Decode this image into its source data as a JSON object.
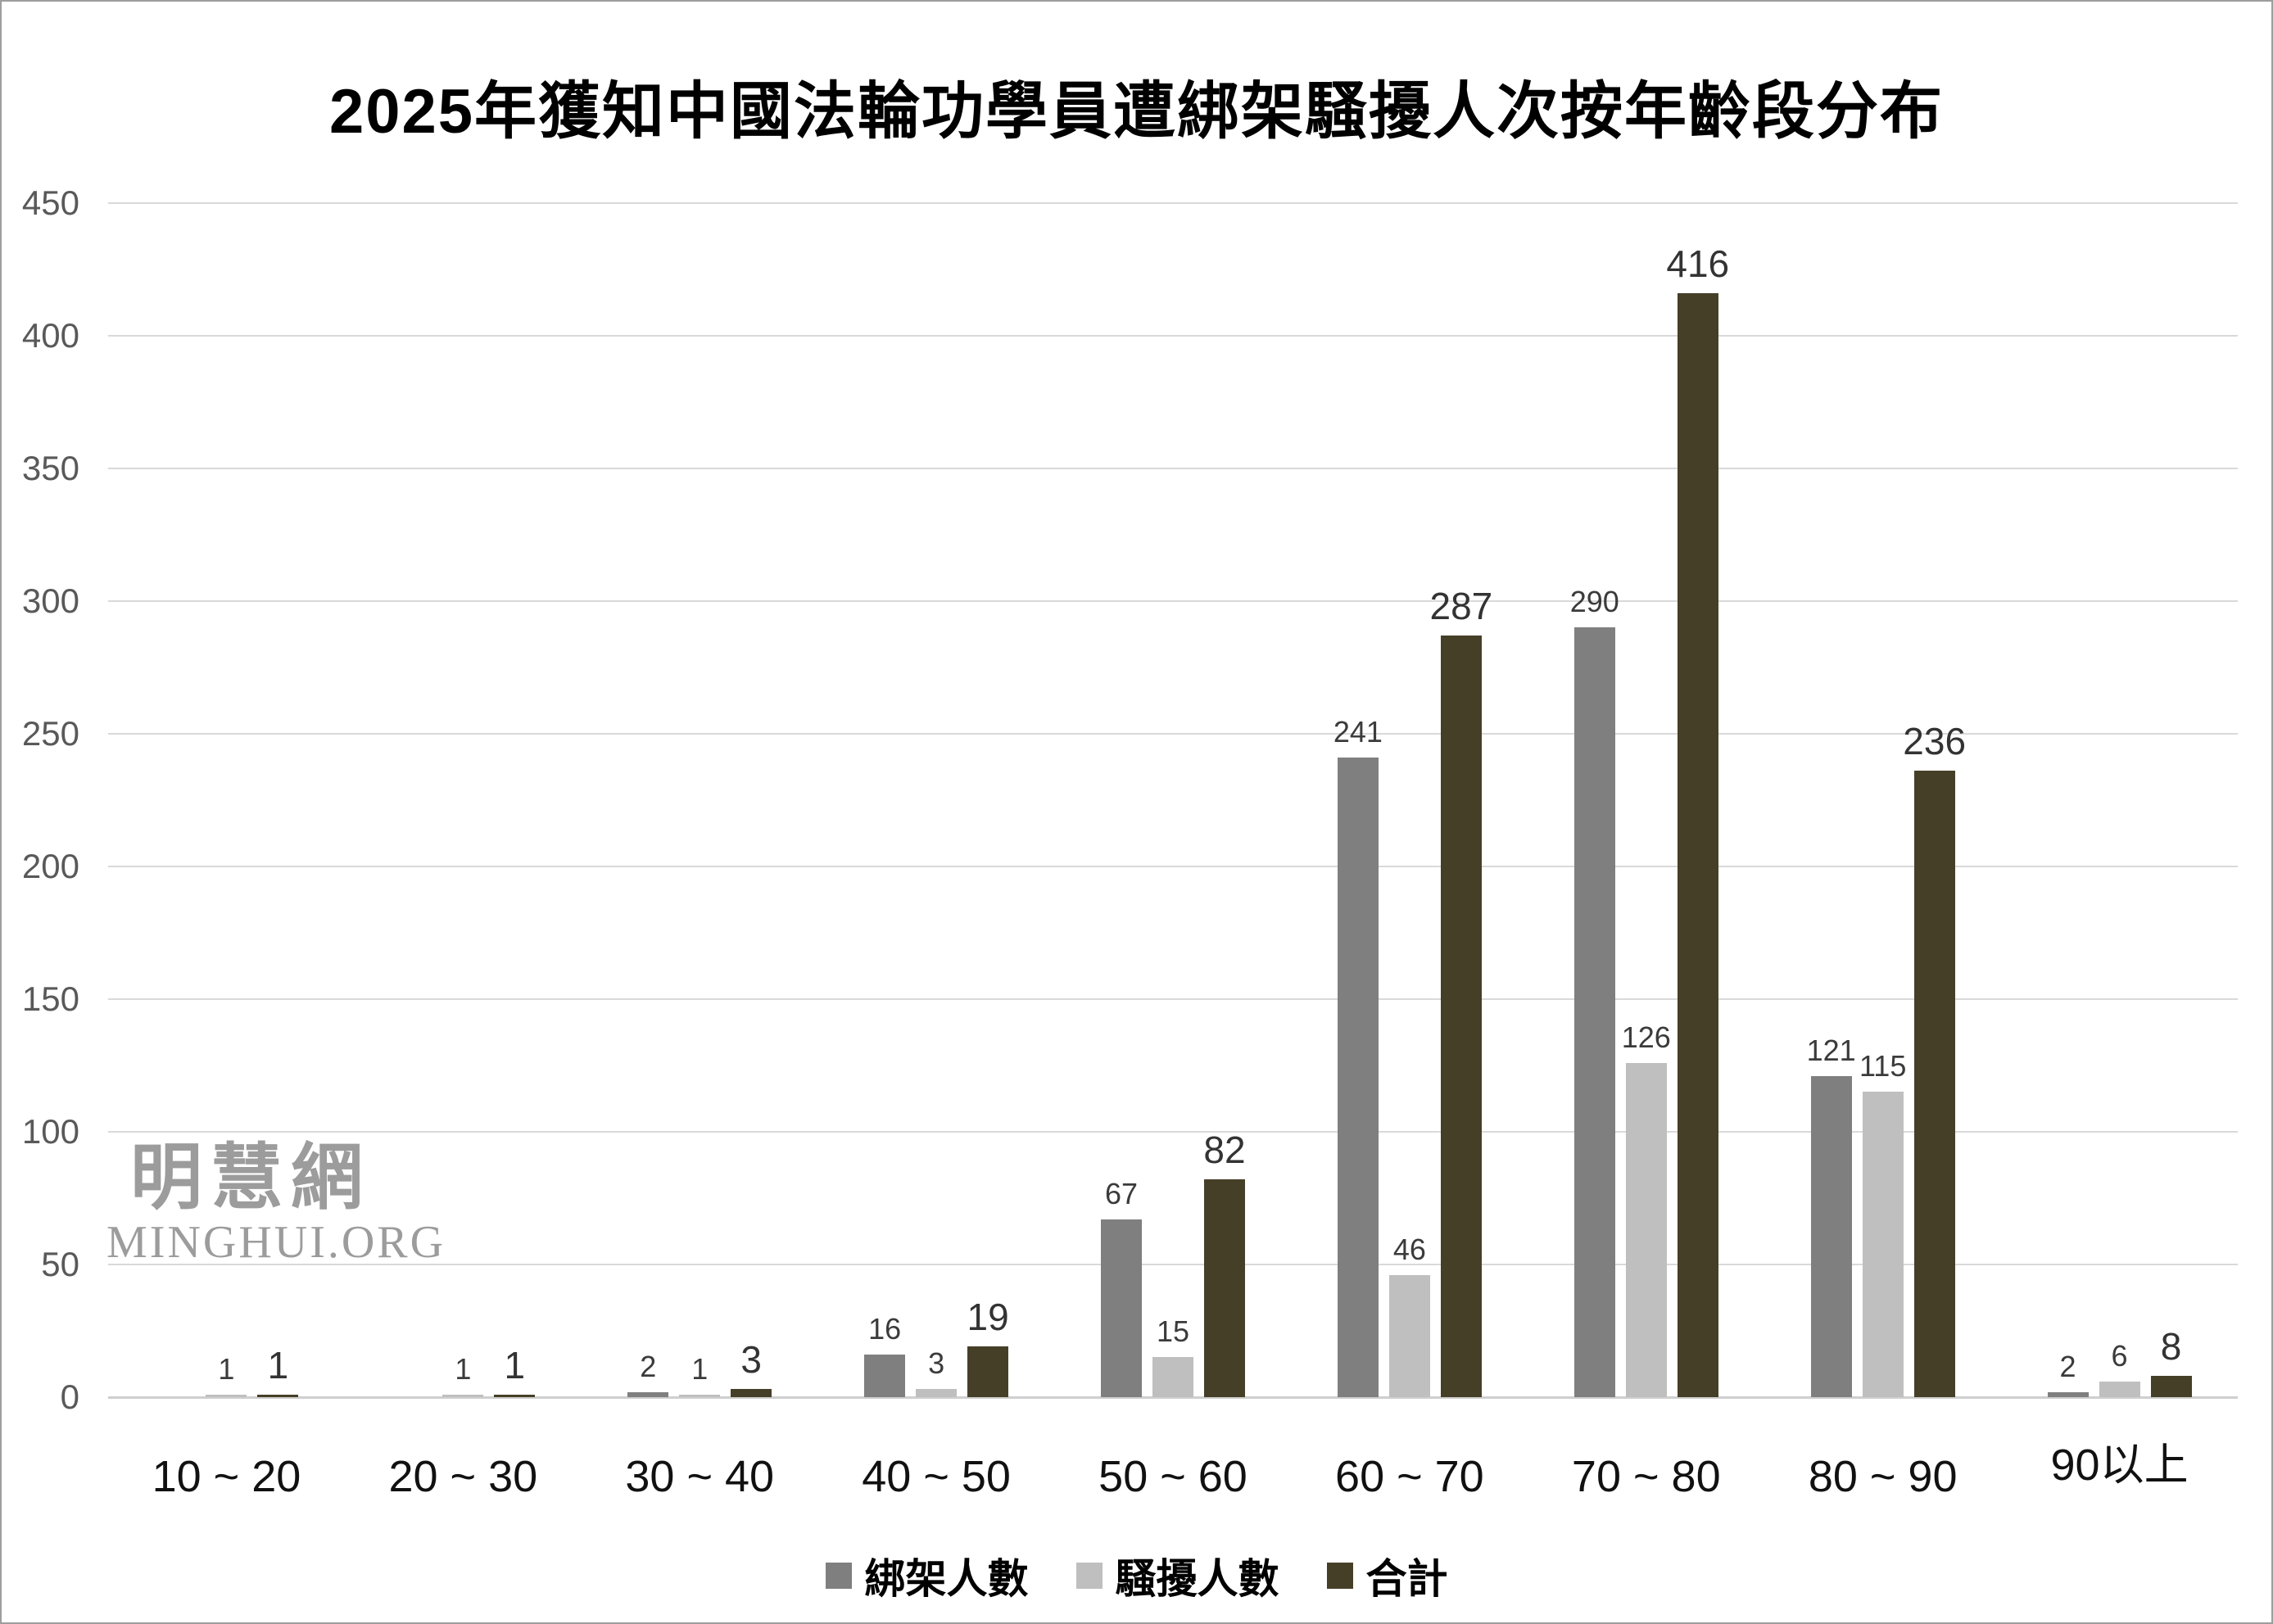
{
  "title": "2025年獲知中國法輪功學員遭綁架騷擾人次按年齡段分布",
  "watermark": {
    "cjk": "明慧網",
    "latin": "MINGHUI.ORG"
  },
  "chart_data": {
    "type": "bar",
    "title": "2025年獲知中國法輪功學員遭綁架騷擾人次按年齡段分布",
    "categories": [
      "10 ~ 20",
      "20 ~ 30",
      "30 ~ 40",
      "40 ~ 50",
      "50 ~ 60",
      "60 ~ 70",
      "70 ~ 80",
      "80 ~ 90",
      "90以上"
    ],
    "series": [
      {
        "name": "綁架人數",
        "color": "#7f7f7f",
        "is_total": false,
        "values": [
          0,
          0,
          2,
          16,
          67,
          241,
          290,
          121,
          2
        ]
      },
      {
        "name": "騷擾人數",
        "color": "#bfbfbf",
        "is_total": false,
        "values": [
          1,
          1,
          1,
          3,
          15,
          46,
          126,
          115,
          6
        ]
      },
      {
        "name": "合計",
        "color": "#463f28",
        "is_total": true,
        "values": [
          1,
          1,
          3,
          19,
          82,
          287,
          416,
          236,
          8
        ]
      }
    ],
    "ylim": [
      0,
      450
    ],
    "yticks": [
      0,
      50,
      100,
      150,
      200,
      250,
      300,
      350,
      400,
      450
    ],
    "grid": true,
    "legend_position": "bottom",
    "value_labels": "above bars, zero values unlabeled",
    "xlabel": "",
    "ylabel": ""
  }
}
